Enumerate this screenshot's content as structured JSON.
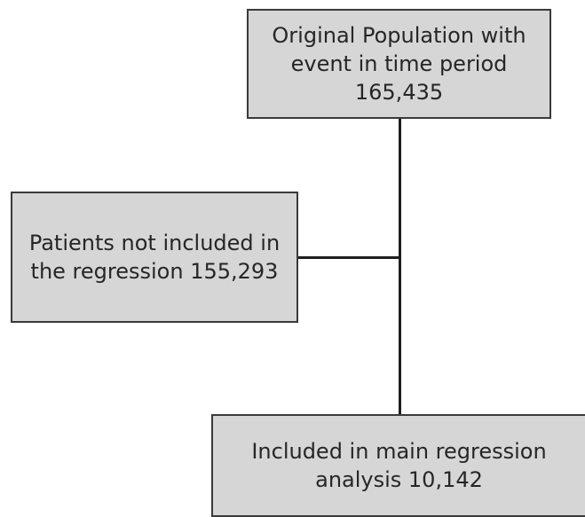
{
  "flowchart": {
    "original_population": {
      "line1": "Original Population with",
      "line2": "event in time period",
      "line3": "165,435"
    },
    "not_included": {
      "line1": "Patients not included in",
      "line2": "the regression 155,293"
    },
    "included": {
      "line1": "Included in main regression",
      "line2": "analysis 10,142"
    }
  },
  "colors": {
    "box_fill": "#d6d6d6",
    "box_border": "#3a3a3a",
    "connector": "#1e1e1e",
    "text": "#262626"
  }
}
